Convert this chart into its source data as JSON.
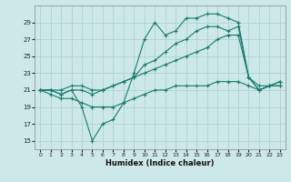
{
  "xlabel": "Humidex (Indice chaleur)",
  "x_values": [
    0,
    1,
    2,
    3,
    4,
    5,
    6,
    7,
    8,
    9,
    10,
    11,
    12,
    13,
    14,
    15,
    16,
    17,
    18,
    19,
    20,
    21,
    22,
    23
  ],
  "line1": [
    21,
    21,
    20.5,
    21,
    19,
    15,
    17,
    17.5,
    19.5,
    23,
    27,
    29,
    27.5,
    28,
    29.5,
    29.5,
    30,
    30,
    29.5,
    29,
    22.5,
    21,
    21.5,
    21.5
  ],
  "line2": [
    21,
    21,
    20.5,
    21,
    21,
    20.5,
    21,
    21.5,
    22,
    22.5,
    24,
    24.5,
    25.5,
    26.5,
    27,
    28,
    28.5,
    28.5,
    28,
    28.5,
    22.5,
    21.5,
    21.5,
    22
  ],
  "line3": [
    21,
    21,
    21,
    21.5,
    21.5,
    21,
    21,
    21.5,
    22,
    22.5,
    23,
    23.5,
    24,
    24.5,
    25,
    25.5,
    26,
    27,
    27.5,
    27.5,
    22.5,
    21,
    21.5,
    22
  ],
  "line4": [
    21,
    20.5,
    20,
    20,
    19.5,
    19,
    19,
    19,
    19.5,
    20,
    20.5,
    21,
    21,
    21.5,
    21.5,
    21.5,
    21.5,
    22,
    22,
    22,
    21.5,
    21,
    21.5,
    21.5
  ],
  "line_color": "#1a7a6e",
  "bg_color": "#cce8e8",
  "grid_color": "#aacece",
  "ylim": [
    14,
    31
  ],
  "yticks": [
    15,
    17,
    19,
    21,
    23,
    25,
    27,
    29
  ],
  "xticks": [
    0,
    1,
    2,
    3,
    4,
    5,
    6,
    7,
    8,
    9,
    10,
    11,
    12,
    13,
    14,
    15,
    16,
    17,
    18,
    19,
    20,
    21,
    22,
    23
  ]
}
